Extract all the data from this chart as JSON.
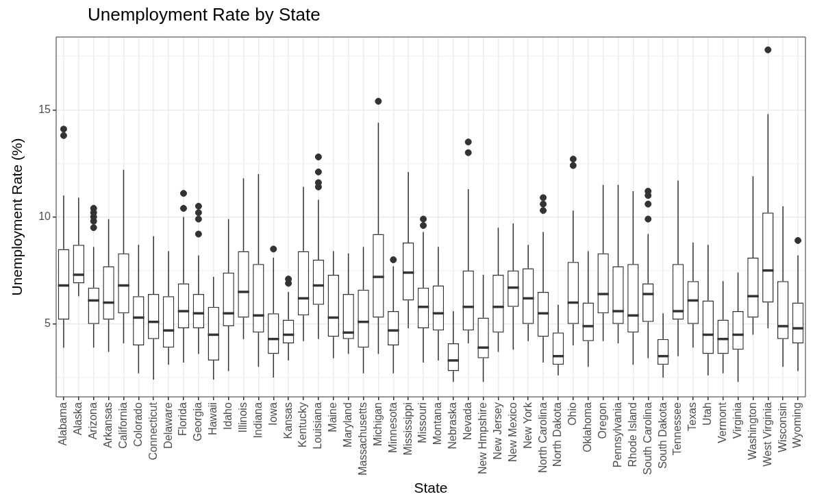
{
  "chart_data": {
    "type": "box",
    "title": "Unemployment Rate by State",
    "xlabel": "State",
    "ylabel": "Unemployment Rate (%)",
    "categories": [
      "Alabama",
      "Alaska",
      "Arizona",
      "Arkansas",
      "California",
      "Colorado",
      "Connecticut",
      "Delaware",
      "Florida",
      "Georgia",
      "Hawaii",
      "Idaho",
      "Illinois",
      "Indiana",
      "Iowa",
      "Kansas",
      "Kentucky",
      "Louisiana",
      "Maine",
      "Maryland",
      "Massachusetts",
      "Michigan",
      "Minnesota",
      "Mississippi",
      "Missouri",
      "Montana",
      "Nebraska",
      "Nevada",
      "New Hmpshire",
      "New Jersey",
      "New Mexico",
      "New York",
      "North Carolina",
      "North Dakota",
      "Ohio",
      "Oklahoma",
      "Oregon",
      "Pennsylvania",
      "Rhode Island",
      "South Carolina",
      "South Dakota",
      "Tennessee",
      "Texas",
      "Utah",
      "Vermont",
      "Virginia",
      "Washington",
      "West Virginia",
      "Wisconsin",
      "Wyoming"
    ],
    "boxes": [
      {
        "low": 3.9,
        "q1": 5.2,
        "median": 6.8,
        "q3": 8.5,
        "high": 11.0,
        "outliers": [
          13.8,
          14.1
        ]
      },
      {
        "low": 6.3,
        "q1": 6.9,
        "median": 7.3,
        "q3": 8.7,
        "high": 10.9
      },
      {
        "low": 3.9,
        "q1": 5.0,
        "median": 6.1,
        "q3": 6.7,
        "high": 8.6,
        "outliers": [
          9.5,
          9.8,
          10.0,
          10.2,
          10.4
        ]
      },
      {
        "low": 3.7,
        "q1": 5.2,
        "median": 6.0,
        "q3": 7.7,
        "high": 9.9
      },
      {
        "low": 4.1,
        "q1": 5.5,
        "median": 6.8,
        "q3": 8.3,
        "high": 12.2
      },
      {
        "low": 2.7,
        "q1": 4.0,
        "median": 5.3,
        "q3": 6.3,
        "high": 8.7
      },
      {
        "low": 2.4,
        "q1": 4.3,
        "median": 5.1,
        "q3": 6.4,
        "high": 9.1
      },
      {
        "low": 3.1,
        "q1": 3.9,
        "median": 4.7,
        "q3": 6.3,
        "high": 8.4
      },
      {
        "low": 3.2,
        "q1": 4.8,
        "median": 5.6,
        "q3": 6.9,
        "high": 10.0,
        "outliers": [
          10.4,
          11.1
        ]
      },
      {
        "low": 3.6,
        "q1": 4.8,
        "median": 5.5,
        "q3": 6.4,
        "high": 8.2,
        "outliers": [
          9.2,
          9.9,
          10.2,
          10.5
        ]
      },
      {
        "low": 2.4,
        "q1": 3.3,
        "median": 4.5,
        "q3": 5.8,
        "high": 7.2
      },
      {
        "low": 2.8,
        "q1": 4.9,
        "median": 5.5,
        "q3": 7.4,
        "high": 9.9
      },
      {
        "low": 4.3,
        "q1": 5.3,
        "median": 6.5,
        "q3": 8.4,
        "high": 11.8
      },
      {
        "low": 3.0,
        "q1": 4.6,
        "median": 5.4,
        "q3": 7.8,
        "high": 12.0
      },
      {
        "low": 2.5,
        "q1": 3.6,
        "median": 4.3,
        "q3": 5.5,
        "high": 8.1,
        "outliers": [
          8.5
        ]
      },
      {
        "low": 3.3,
        "q1": 4.1,
        "median": 4.5,
        "q3": 5.2,
        "high": 6.5,
        "outliers": [
          6.9,
          7.1
        ]
      },
      {
        "low": 4.2,
        "q1": 5.4,
        "median": 6.2,
        "q3": 8.4,
        "high": 11.4
      },
      {
        "low": 4.3,
        "q1": 5.9,
        "median": 6.8,
        "q3": 8.0,
        "high": 10.8,
        "outliers": [
          11.4,
          11.6,
          12.1,
          12.8
        ]
      },
      {
        "low": 3.4,
        "q1": 4.4,
        "median": 5.3,
        "q3": 7.3,
        "high": 8.4
      },
      {
        "low": 3.6,
        "q1": 4.3,
        "median": 4.6,
        "q3": 6.4,
        "high": 8.3
      },
      {
        "low": 2.7,
        "q1": 3.9,
        "median": 5.1,
        "q3": 6.6,
        "high": 8.6
      },
      {
        "low": 3.6,
        "q1": 5.3,
        "median": 7.2,
        "q3": 9.2,
        "high": 14.4,
        "outliers": [
          15.4
        ]
      },
      {
        "low": 2.7,
        "q1": 4.0,
        "median": 4.7,
        "q3": 5.6,
        "high": 7.7,
        "outliers": [
          8.0
        ]
      },
      {
        "low": 4.8,
        "q1": 6.1,
        "median": 7.4,
        "q3": 8.8,
        "high": 12.1
      },
      {
        "low": 3.2,
        "q1": 4.8,
        "median": 5.8,
        "q3": 6.7,
        "high": 9.3,
        "outliers": [
          9.6,
          9.9
        ]
      },
      {
        "low": 3.3,
        "q1": 4.7,
        "median": 5.5,
        "q3": 6.8,
        "high": 8.6
      },
      {
        "low": 2.3,
        "q1": 2.8,
        "median": 3.3,
        "q3": 4.1,
        "high": 5.6
      },
      {
        "low": 4.1,
        "q1": 4.7,
        "median": 5.8,
        "q3": 7.5,
        "high": 11.3,
        "outliers": [
          13.0,
          13.5
        ]
      },
      {
        "low": 2.3,
        "q1": 3.4,
        "median": 3.9,
        "q3": 5.3,
        "high": 7.3
      },
      {
        "low": 3.7,
        "q1": 4.6,
        "median": 5.8,
        "q3": 7.3,
        "high": 9.5
      },
      {
        "low": 3.8,
        "q1": 5.8,
        "median": 6.7,
        "q3": 7.5,
        "high": 9.7
      },
      {
        "low": 4.2,
        "q1": 5.0,
        "median": 6.2,
        "q3": 7.6,
        "high": 8.7
      },
      {
        "low": 3.2,
        "q1": 4.4,
        "median": 5.5,
        "q3": 6.5,
        "high": 9.3,
        "outliers": [
          10.3,
          10.6,
          10.9
        ]
      },
      {
        "low": 2.6,
        "q1": 3.1,
        "median": 3.5,
        "q3": 4.6,
        "high": 5.9
      },
      {
        "low": 4.0,
        "q1": 5.0,
        "median": 6.0,
        "q3": 7.9,
        "high": 10.3,
        "outliers": [
          12.4,
          12.7
        ]
      },
      {
        "low": 3.0,
        "q1": 4.2,
        "median": 4.9,
        "q3": 6.0,
        "high": 8.4
      },
      {
        "low": 4.2,
        "q1": 5.5,
        "median": 6.4,
        "q3": 8.3,
        "high": 11.5
      },
      {
        "low": 4.1,
        "q1": 5.0,
        "median": 5.6,
        "q3": 7.7,
        "high": 11.5
      },
      {
        "low": 3.1,
        "q1": 4.6,
        "median": 5.4,
        "q3": 7.8,
        "high": 11.2
      },
      {
        "low": 3.4,
        "q1": 5.1,
        "median": 6.4,
        "q3": 6.9,
        "high": 9.2,
        "outliers": [
          9.9,
          10.6,
          11.0,
          11.2
        ]
      },
      {
        "low": 2.5,
        "q1": 3.1,
        "median": 3.5,
        "q3": 4.3,
        "high": 5.5
      },
      {
        "low": 3.5,
        "q1": 5.2,
        "median": 5.6,
        "q3": 7.8,
        "high": 11.7
      },
      {
        "low": 3.9,
        "q1": 5.0,
        "median": 6.1,
        "q3": 7.0,
        "high": 8.8
      },
      {
        "low": 2.6,
        "q1": 3.6,
        "median": 4.5,
        "q3": 6.1,
        "high": 8.7
      },
      {
        "low": 2.7,
        "q1": 3.6,
        "median": 4.3,
        "q3": 5.2,
        "high": 7.0
      },
      {
        "low": 2.3,
        "q1": 3.8,
        "median": 4.5,
        "q3": 5.6,
        "high": 7.4
      },
      {
        "low": 4.5,
        "q1": 5.3,
        "median": 6.3,
        "q3": 8.1,
        "high": 11.9
      },
      {
        "low": 4.8,
        "q1": 6.0,
        "median": 7.5,
        "q3": 10.2,
        "high": 14.8,
        "outliers": [
          17.8
        ]
      },
      {
        "low": 3.0,
        "q1": 4.3,
        "median": 4.9,
        "q3": 7.0,
        "high": 10.5
      },
      {
        "low": 2.8,
        "q1": 4.1,
        "median": 4.8,
        "q3": 6.0,
        "high": 8.2,
        "outliers": [
          8.9
        ]
      }
    ],
    "ylim": [
      1.6,
      18.4
    ],
    "yticks": [
      {
        "value": 2.5,
        "label": null
      },
      5,
      {
        "value": 7.5,
        "label": null
      },
      10,
      {
        "value": 12.5,
        "label": null
      },
      15,
      {
        "value": 17.5,
        "label": null
      }
    ],
    "grid": true,
    "legend": false
  }
}
